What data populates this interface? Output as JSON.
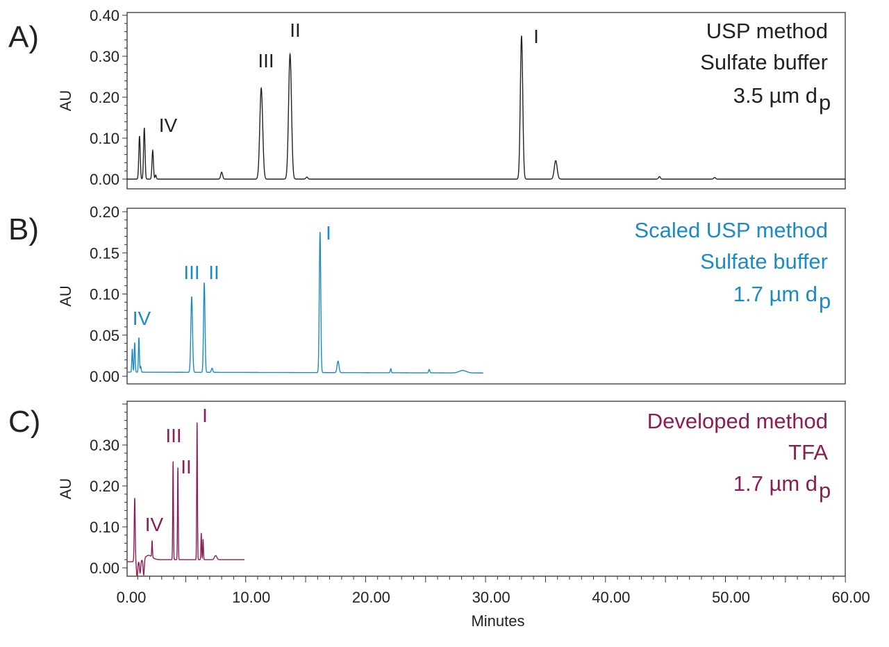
{
  "chart_data": {
    "type": "line",
    "xlabel": "Minutes",
    "xlim": [
      0,
      60
    ],
    "x_ticks": [
      "0.00",
      "10.00",
      "20.00",
      "30.00",
      "40.00",
      "50.00",
      "60.00"
    ],
    "grid": false,
    "panels": [
      {
        "letter": "A)",
        "ylabel": "AU",
        "color": "#222222",
        "ylim": [
          0,
          0.43
        ],
        "y_ticks": [
          "0.00",
          "0.10",
          "0.20",
          "0.30",
          "0.40"
        ],
        "y_tick_values": [
          0,
          0.1,
          0.2,
          0.3,
          0.4
        ],
        "description": [
          "USP method",
          "Sulfate buffer",
          "3.5 µm d"
        ],
        "subscript": "p",
        "run_end": 60,
        "baseline": [
          [
            0,
            0.0
          ],
          [
            60,
            0.0
          ]
        ],
        "peaks": [
          {
            "t": 1.15,
            "h": 0.105,
            "w": 0.06
          },
          {
            "t": 1.55,
            "h": 0.125,
            "w": 0.06
          },
          {
            "t": 2.25,
            "h": 0.07,
            "w": 0.06
          },
          {
            "t": 2.5,
            "h": 0.01,
            "w": 0.05
          },
          {
            "t": 8.0,
            "h": 0.017,
            "w": 0.08
          },
          {
            "t": 11.3,
            "h": 0.222,
            "w": 0.12,
            "label": "III"
          },
          {
            "t": 13.7,
            "h": 0.305,
            "w": 0.12,
            "label": "II"
          },
          {
            "t": 15.1,
            "h": 0.005,
            "w": 0.08
          },
          {
            "t": 33.0,
            "h": 0.35,
            "w": 0.1,
            "label": "I"
          },
          {
            "t": 35.85,
            "h": 0.045,
            "w": 0.12
          },
          {
            "t": 44.5,
            "h": 0.006,
            "w": 0.08
          },
          {
            "t": 49.1,
            "h": 0.004,
            "w": 0.08
          }
        ],
        "group_label": "IV"
      },
      {
        "letter": "B)",
        "ylabel": "AU",
        "color": "#1b8bc2",
        "ylim": [
          0,
          0.21
        ],
        "y_ticks": [
          "0.00",
          "0.05",
          "0.10",
          "0.15",
          "0.20"
        ],
        "y_tick_values": [
          0,
          0.05,
          0.1,
          0.15,
          0.2
        ],
        "description": [
          "Scaled USP method",
          "Sulfate buffer",
          "1.7 µm d"
        ],
        "subscript": "p",
        "run_end": 29.8,
        "baseline": [
          [
            0,
            0.005
          ],
          [
            29.8,
            0.004
          ]
        ],
        "peaks": [
          {
            "t": 0.55,
            "h": 0.028,
            "w": 0.04
          },
          {
            "t": 0.75,
            "h": 0.036,
            "w": 0.04
          },
          {
            "t": 1.1,
            "h": 0.042,
            "w": 0.04
          },
          {
            "t": 1.25,
            "h": 0.007,
            "w": 0.04
          },
          {
            "t": 5.5,
            "h": 0.092,
            "w": 0.07,
            "label": "III"
          },
          {
            "t": 6.55,
            "h": 0.109,
            "w": 0.06,
            "label": "II"
          },
          {
            "t": 7.2,
            "h": 0.005,
            "w": 0.06
          },
          {
            "t": 16.2,
            "h": 0.171,
            "w": 0.06,
            "label": "I"
          },
          {
            "t": 17.7,
            "h": 0.014,
            "w": 0.08
          },
          {
            "t": 22.1,
            "h": 0.005,
            "w": 0.04
          },
          {
            "t": 25.3,
            "h": 0.004,
            "w": 0.05
          },
          {
            "t": 28.1,
            "h": 0.003,
            "w": 0.3
          }
        ],
        "group_label": "IV"
      },
      {
        "letter": "C)",
        "ylabel": "AU",
        "color": "#8c1d55",
        "ylim": [
          -0.02,
          0.407
        ],
        "y_ticks": [
          "0.00",
          "0.10",
          "0.20",
          "0.30"
        ],
        "y_tick_values": [
          0,
          0.1,
          0.2,
          0.3
        ],
        "description": [
          "Developed method",
          "TFA",
          "1.7 µm d"
        ],
        "subscript": "p",
        "run_end": 9.9,
        "baseline": [
          [
            0,
            0.015
          ],
          [
            0.5,
            0.015
          ],
          [
            2.5,
            0.02
          ],
          [
            9.9,
            0.02
          ]
        ],
        "peaks": [
          {
            "t": 0.75,
            "h": 0.155,
            "w": 0.04
          },
          {
            "t": 0.95,
            "h": -0.04,
            "w": 0.05
          },
          {
            "t": 1.2,
            "h": -0.03,
            "w": 0.05
          },
          {
            "t": 1.5,
            "h": -0.04,
            "w": 0.05
          },
          {
            "t": 1.9,
            "h": 0.012,
            "w": 0.3
          },
          {
            "t": 2.2,
            "h": 0.04,
            "w": 0.03
          },
          {
            "t": 3.95,
            "h": 0.24,
            "w": 0.03,
            "label": "III"
          },
          {
            "t": 4.35,
            "h": 0.225,
            "w": 0.03,
            "label": "II"
          },
          {
            "t": 5.95,
            "h": 0.335,
            "w": 0.03,
            "label": "I"
          },
          {
            "t": 6.3,
            "h": 0.065,
            "w": 0.03
          },
          {
            "t": 6.45,
            "h": 0.05,
            "w": 0.03
          },
          {
            "t": 7.5,
            "h": 0.01,
            "w": 0.1
          }
        ],
        "group_label": "IV"
      }
    ]
  }
}
